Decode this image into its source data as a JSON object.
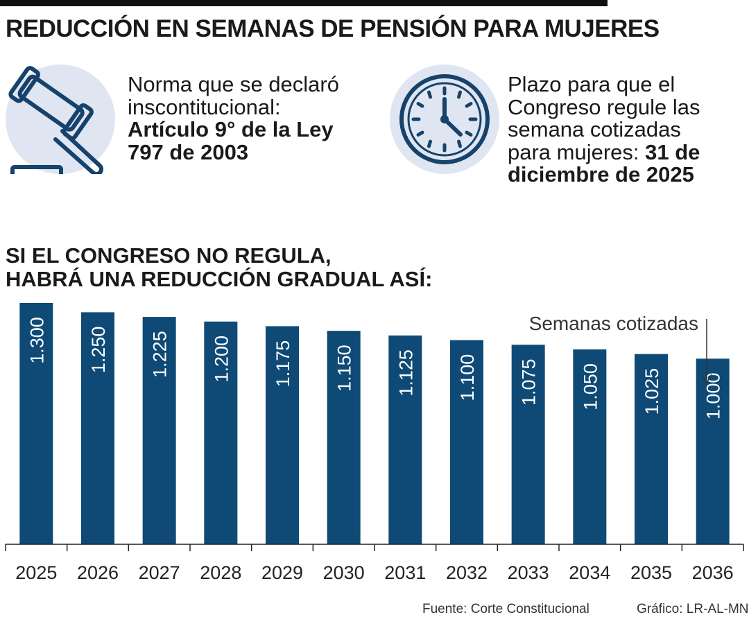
{
  "title": "REDUCCIÓN EN SEMANAS DE PENSIÓN PARA MUJERES",
  "info_left": {
    "icon": "gavel-icon",
    "text_line1": "Norma que se declaró",
    "text_line2": "inscontitucional:",
    "bold_line1": "Artículo 9° de la Ley",
    "bold_line2": "797 de 2003"
  },
  "info_right": {
    "icon": "clock-icon",
    "text_line1": "Plazo para que el",
    "text_line2": "Congreso regule las",
    "text_line3": "semana cotizadas",
    "text_line4": "para mujeres: ",
    "bold_inline": "31 de",
    "bold_line2": "diciembre de 2025"
  },
  "subtitle": {
    "line1": "SI EL CONGRESO NO REGULA,",
    "line2": "HABRÁ UNA REDUCCIÓN GRADUAL ASÍ:"
  },
  "colors": {
    "bar": "#0e4a75",
    "icon_circle": "#dfe6f1",
    "icon_stroke": "#16426b"
  },
  "chart_data": {
    "type": "bar",
    "categories": [
      "2025",
      "2026",
      "2027",
      "2028",
      "2029",
      "2030",
      "2031",
      "2032",
      "2033",
      "2034",
      "2035",
      "2036"
    ],
    "values": [
      1300,
      1250,
      1225,
      1200,
      1175,
      1150,
      1125,
      1100,
      1075,
      1050,
      1025,
      1000
    ],
    "value_labels": [
      "1.300",
      "1.250",
      "1.225",
      "1.200",
      "1.175",
      "1.150",
      "1.125",
      "1.100",
      "1.075",
      "1.050",
      "1.025",
      "1.000"
    ],
    "annotation": "Semanas cotizadas",
    "grid": false,
    "y_axis_shown": false
  },
  "footer": {
    "source": "Fuente: Corte Constitucional",
    "credit": "Gráfico: LR-AL-MN"
  }
}
